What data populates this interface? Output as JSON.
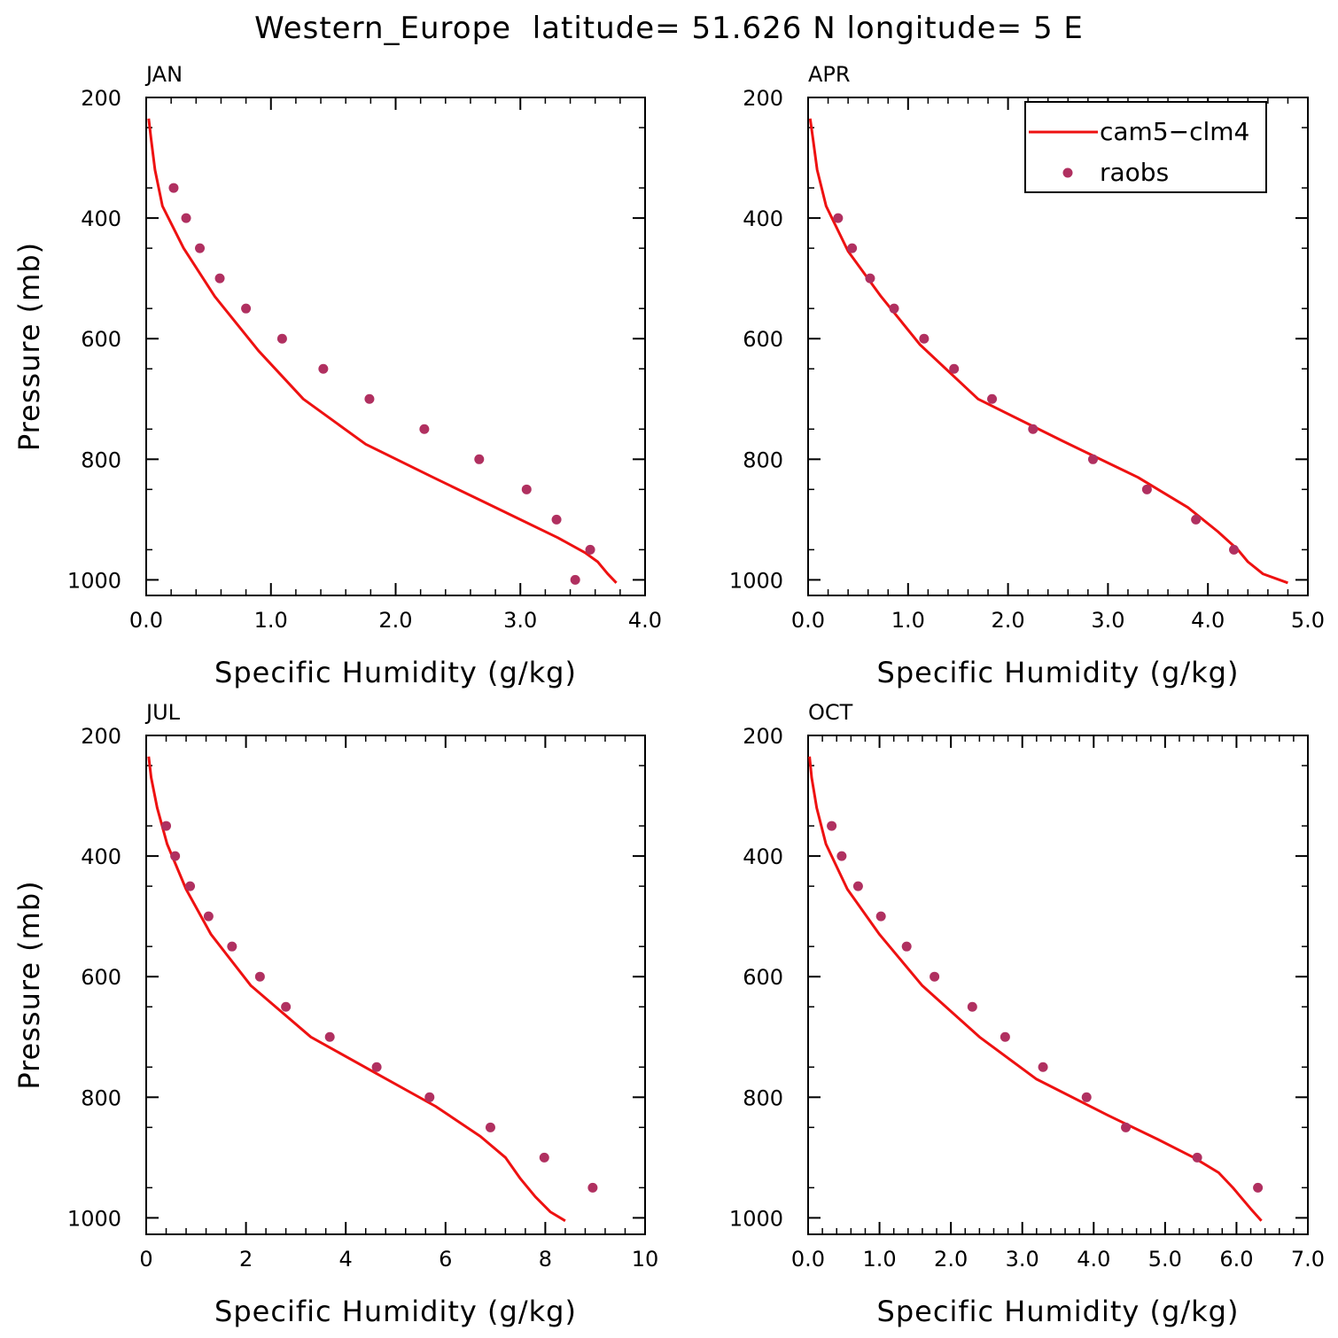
{
  "title": "Western_Europe  latitude= 51.626 N longitude= 5 E",
  "colors": {
    "model": "#ee1111",
    "obs": "#b03060",
    "axis": "#000000"
  },
  "legend": {
    "model_label": "cam5−clm4",
    "obs_label": "raobs"
  },
  "chart_data": [
    {
      "type": "line",
      "panel": "JAN",
      "xlabel": "Specific Humidity (g/kg)",
      "ylabel": "Pressure (mb)",
      "xlim": [
        0,
        4
      ],
      "ylim": [
        200,
        1025
      ],
      "x_ticks": [
        0,
        1,
        2,
        3,
        4
      ],
      "x_tick_labels": [
        "0.0",
        "1.0",
        "2.0",
        "3.0",
        "4.0"
      ],
      "y_ticks": [
        200,
        400,
        600,
        800,
        1000
      ],
      "y_tick_labels": [
        "200",
        "400",
        "600",
        "800",
        "1000"
      ],
      "model": {
        "name": "cam5-clm4",
        "x": [
          0.02,
          0.04,
          0.07,
          0.13,
          0.3,
          0.55,
          0.9,
          1.26,
          1.76,
          2.3,
          2.7,
          3.0,
          3.3,
          3.52,
          3.62,
          3.7,
          3.77
        ],
        "p": [
          235,
          270,
          320,
          380,
          450,
          530,
          620,
          700,
          775,
          830,
          870,
          900,
          930,
          955,
          970,
          990,
          1005
        ]
      },
      "obs": {
        "name": "raobs",
        "x": [
          0.22,
          0.32,
          0.43,
          0.59,
          0.8,
          1.09,
          1.42,
          1.79,
          2.23,
          2.67,
          3.05,
          3.29,
          3.56,
          3.44
        ],
        "p": [
          350,
          400,
          450,
          500,
          550,
          600,
          650,
          700,
          750,
          800,
          850,
          900,
          950,
          1000
        ]
      }
    },
    {
      "type": "line",
      "panel": "APR",
      "show_legend": true,
      "xlabel": "Specific Humidity (g/kg)",
      "ylabel": "",
      "xlim": [
        0,
        5
      ],
      "ylim": [
        200,
        1025
      ],
      "x_ticks": [
        0,
        1,
        2,
        3,
        4,
        5
      ],
      "x_tick_labels": [
        "0.0",
        "1.0",
        "2.0",
        "3.0",
        "4.0",
        "5.0"
      ],
      "y_ticks": [
        200,
        400,
        600,
        800,
        1000
      ],
      "y_tick_labels": [
        "200",
        "400",
        "600",
        "800",
        "1000"
      ],
      "model": {
        "name": "cam5-clm4",
        "x": [
          0.02,
          0.05,
          0.09,
          0.18,
          0.4,
          0.73,
          1.12,
          1.7,
          2.55,
          3.3,
          3.8,
          4.1,
          4.3,
          4.4,
          4.55,
          4.8
        ],
        "p": [
          235,
          270,
          320,
          380,
          455,
          530,
          610,
          700,
          770,
          830,
          880,
          920,
          950,
          970,
          990,
          1005
        ]
      },
      "obs": {
        "name": "raobs",
        "x": [
          0.3,
          0.44,
          0.62,
          0.86,
          1.16,
          1.46,
          1.84,
          2.25,
          2.85,
          3.39,
          3.88,
          4.26
        ],
        "p": [
          400,
          450,
          500,
          550,
          600,
          650,
          700,
          750,
          800,
          850,
          900,
          950
        ]
      }
    },
    {
      "type": "line",
      "panel": "JUL",
      "xlabel": "Specific Humidity (g/kg)",
      "ylabel": "Pressure (mb)",
      "xlim": [
        0,
        10
      ],
      "ylim": [
        200,
        1025
      ],
      "x_ticks": [
        0,
        2,
        4,
        6,
        8,
        10
      ],
      "x_tick_labels": [
        "0",
        "2",
        "4",
        "6",
        "8",
        "10"
      ],
      "y_ticks": [
        200,
        400,
        600,
        800,
        1000
      ],
      "y_tick_labels": [
        "200",
        "400",
        "600",
        "800",
        "1000"
      ],
      "model": {
        "name": "cam5-clm4",
        "x": [
          0.05,
          0.1,
          0.22,
          0.42,
          0.8,
          1.3,
          2.1,
          3.3,
          4.6,
          5.8,
          6.7,
          7.2,
          7.5,
          7.8,
          8.1,
          8.4
        ],
        "p": [
          235,
          270,
          320,
          380,
          455,
          530,
          615,
          700,
          760,
          815,
          865,
          900,
          935,
          965,
          990,
          1005
        ]
      },
      "obs": {
        "name": "raobs",
        "x": [
          0.4,
          0.58,
          0.88,
          1.25,
          1.72,
          2.28,
          2.8,
          3.68,
          4.62,
          5.68,
          6.9,
          7.98,
          8.95
        ],
        "p": [
          350,
          400,
          450,
          500,
          550,
          600,
          650,
          700,
          750,
          800,
          850,
          900,
          950
        ]
      }
    },
    {
      "type": "line",
      "panel": "OCT",
      "xlabel": "Specific Humidity (g/kg)",
      "ylabel": "",
      "xlim": [
        0,
        7
      ],
      "ylim": [
        200,
        1025
      ],
      "x_ticks": [
        0,
        1,
        2,
        3,
        4,
        5,
        6,
        7
      ],
      "x_tick_labels": [
        "0.0",
        "1.0",
        "2.0",
        "3.0",
        "4.0",
        "5.0",
        "6.0",
        "7.0"
      ],
      "y_ticks": [
        200,
        400,
        600,
        800,
        1000
      ],
      "y_tick_labels": [
        "200",
        "400",
        "600",
        "800",
        "1000"
      ],
      "model": {
        "name": "cam5-clm4",
        "x": [
          0.02,
          0.05,
          0.12,
          0.25,
          0.55,
          1.0,
          1.6,
          2.4,
          3.2,
          4.2,
          4.9,
          5.4,
          5.75,
          5.95,
          6.2,
          6.35
        ],
        "p": [
          235,
          270,
          320,
          380,
          455,
          530,
          615,
          700,
          770,
          830,
          870,
          900,
          925,
          950,
          985,
          1005
        ]
      },
      "obs": {
        "name": "raobs",
        "x": [
          0.33,
          0.47,
          0.7,
          1.02,
          1.38,
          1.77,
          2.3,
          2.76,
          3.29,
          3.9,
          4.45,
          5.45,
          6.3
        ],
        "p": [
          350,
          400,
          450,
          500,
          550,
          600,
          650,
          700,
          750,
          800,
          850,
          900,
          950
        ]
      }
    }
  ]
}
